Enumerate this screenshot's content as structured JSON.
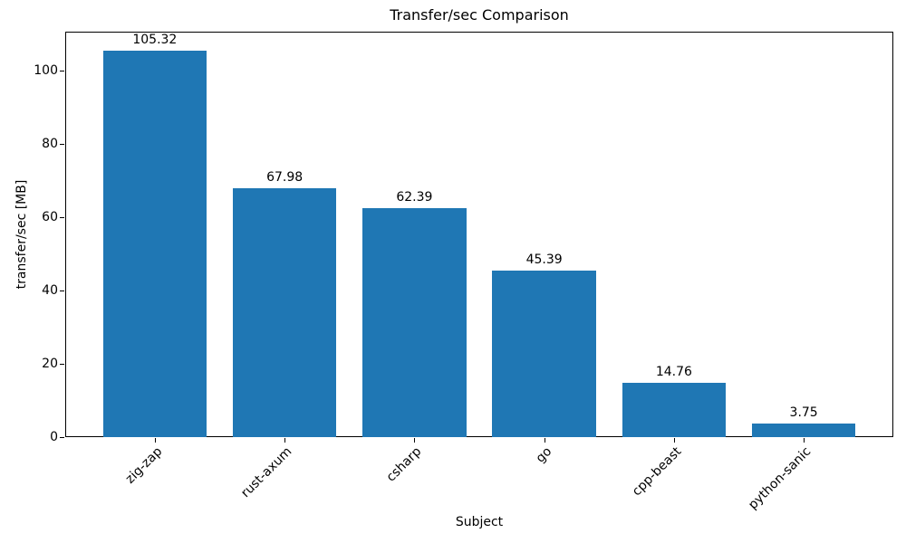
{
  "figure": {
    "title": "Transfer/sec Comparison",
    "xlabel": "Subject",
    "ylabel": "transfer/sec [MB]"
  },
  "chart_data": {
    "type": "bar",
    "title": "Transfer/sec Comparison",
    "xlabel": "Subject",
    "ylabel": "transfer/sec [MB]",
    "categories": [
      "zig-zap",
      "rust-axum",
      "csharp",
      "go",
      "cpp-beast",
      "python-sanic"
    ],
    "values": [
      105.32,
      67.98,
      62.39,
      45.39,
      14.76,
      3.75
    ],
    "value_labels": [
      "105.32",
      "67.98",
      "62.39",
      "45.39",
      "14.76",
      "3.75"
    ],
    "yticks": [
      0,
      20,
      40,
      60,
      80,
      100
    ],
    "ylim": [
      0,
      110.6
    ],
    "x_margin": 0.29,
    "bar_width_fraction": 0.8,
    "xtick_rotation_deg": 45,
    "bar_color": "#1f77b4",
    "axis_color": "#000000",
    "grid": false,
    "legend": null
  }
}
